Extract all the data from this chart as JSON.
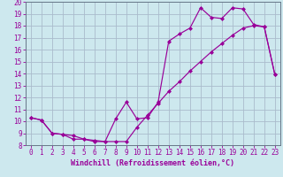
{
  "xlabel": "Windchill (Refroidissement éolien,°C)",
  "bg_color": "#cde8ee",
  "line_color": "#990099",
  "grid_color": "#aabbcc",
  "spine_color": "#667788",
  "xlim": [
    -0.5,
    23.5
  ],
  "ylim": [
    8,
    20
  ],
  "xticks": [
    0,
    1,
    2,
    3,
    4,
    5,
    6,
    7,
    8,
    9,
    10,
    11,
    12,
    13,
    14,
    15,
    16,
    17,
    18,
    19,
    20,
    21,
    22,
    23
  ],
  "yticks": [
    8,
    9,
    10,
    11,
    12,
    13,
    14,
    15,
    16,
    17,
    18,
    19,
    20
  ],
  "curve1_x": [
    0,
    1,
    2,
    3,
    4,
    5,
    6,
    7,
    8,
    9,
    10,
    11,
    12,
    13,
    14,
    15,
    16,
    17,
    18,
    19,
    20,
    21,
    22,
    23
  ],
  "curve1_y": [
    10.3,
    10.1,
    9.0,
    8.9,
    8.5,
    8.5,
    8.3,
    8.3,
    10.2,
    11.6,
    10.2,
    10.3,
    11.6,
    16.7,
    17.3,
    17.8,
    19.5,
    18.7,
    18.6,
    19.5,
    19.4,
    18.1,
    17.9,
    13.9
  ],
  "curve2_x": [
    0,
    1,
    2,
    3,
    4,
    5,
    6,
    7,
    8,
    9,
    10,
    11,
    12,
    13,
    14,
    15,
    16,
    17,
    18,
    19,
    20,
    21,
    22,
    23
  ],
  "curve2_y": [
    10.3,
    10.1,
    9.0,
    8.9,
    8.8,
    8.5,
    8.4,
    8.3,
    8.3,
    8.3,
    9.5,
    10.5,
    11.5,
    12.5,
    13.3,
    14.2,
    15.0,
    15.8,
    16.5,
    17.2,
    17.8,
    18.0,
    17.9,
    13.9
  ],
  "tick_fontsize": 5.5,
  "xlabel_fontsize": 6.0
}
